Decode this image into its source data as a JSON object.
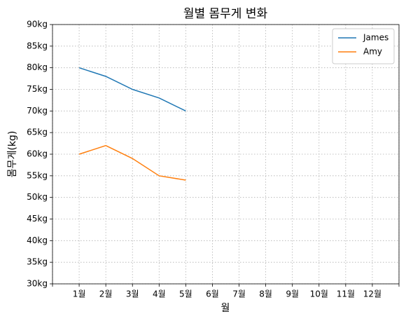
{
  "chart_data": {
    "type": "line",
    "title": "월별 몸무게 변화",
    "xlabel": "월",
    "ylabel": "몸무게(kg)",
    "categories": [
      null,
      "1월",
      "2월",
      "3월",
      "4월",
      "5월",
      "6월",
      "7월",
      "8월",
      "9월",
      "10월",
      "11월",
      "12월",
      null
    ],
    "series": [
      {
        "name": "James",
        "color": "#1f77b4",
        "values": [
          null,
          80,
          78,
          75,
          73,
          70,
          null,
          null,
          null,
          null,
          null,
          null,
          null,
          null
        ]
      },
      {
        "name": "Amy",
        "color": "#ff7f0e",
        "values": [
          null,
          60,
          62,
          59,
          55,
          54,
          null,
          null,
          null,
          null,
          null,
          null,
          null,
          null
        ]
      }
    ],
    "ylim": [
      30,
      90
    ],
    "yticks": [
      {
        "value": 30,
        "label": "30kg"
      },
      {
        "value": 35,
        "label": "35kg"
      },
      {
        "value": 40,
        "label": "40kg"
      },
      {
        "value": 45,
        "label": "45kg"
      },
      {
        "value": 50,
        "label": "50kg"
      },
      {
        "value": 55,
        "label": "55kg"
      },
      {
        "value": 60,
        "label": "60kg"
      },
      {
        "value": 65,
        "label": "65kg"
      },
      {
        "value": 70,
        "label": "70kg"
      },
      {
        "value": 75,
        "label": "75kg"
      },
      {
        "value": 80,
        "label": "80kg"
      },
      {
        "value": 85,
        "label": "85kg"
      },
      {
        "value": 90,
        "label": "90kg"
      }
    ],
    "grid": true,
    "legend": "upper right"
  }
}
